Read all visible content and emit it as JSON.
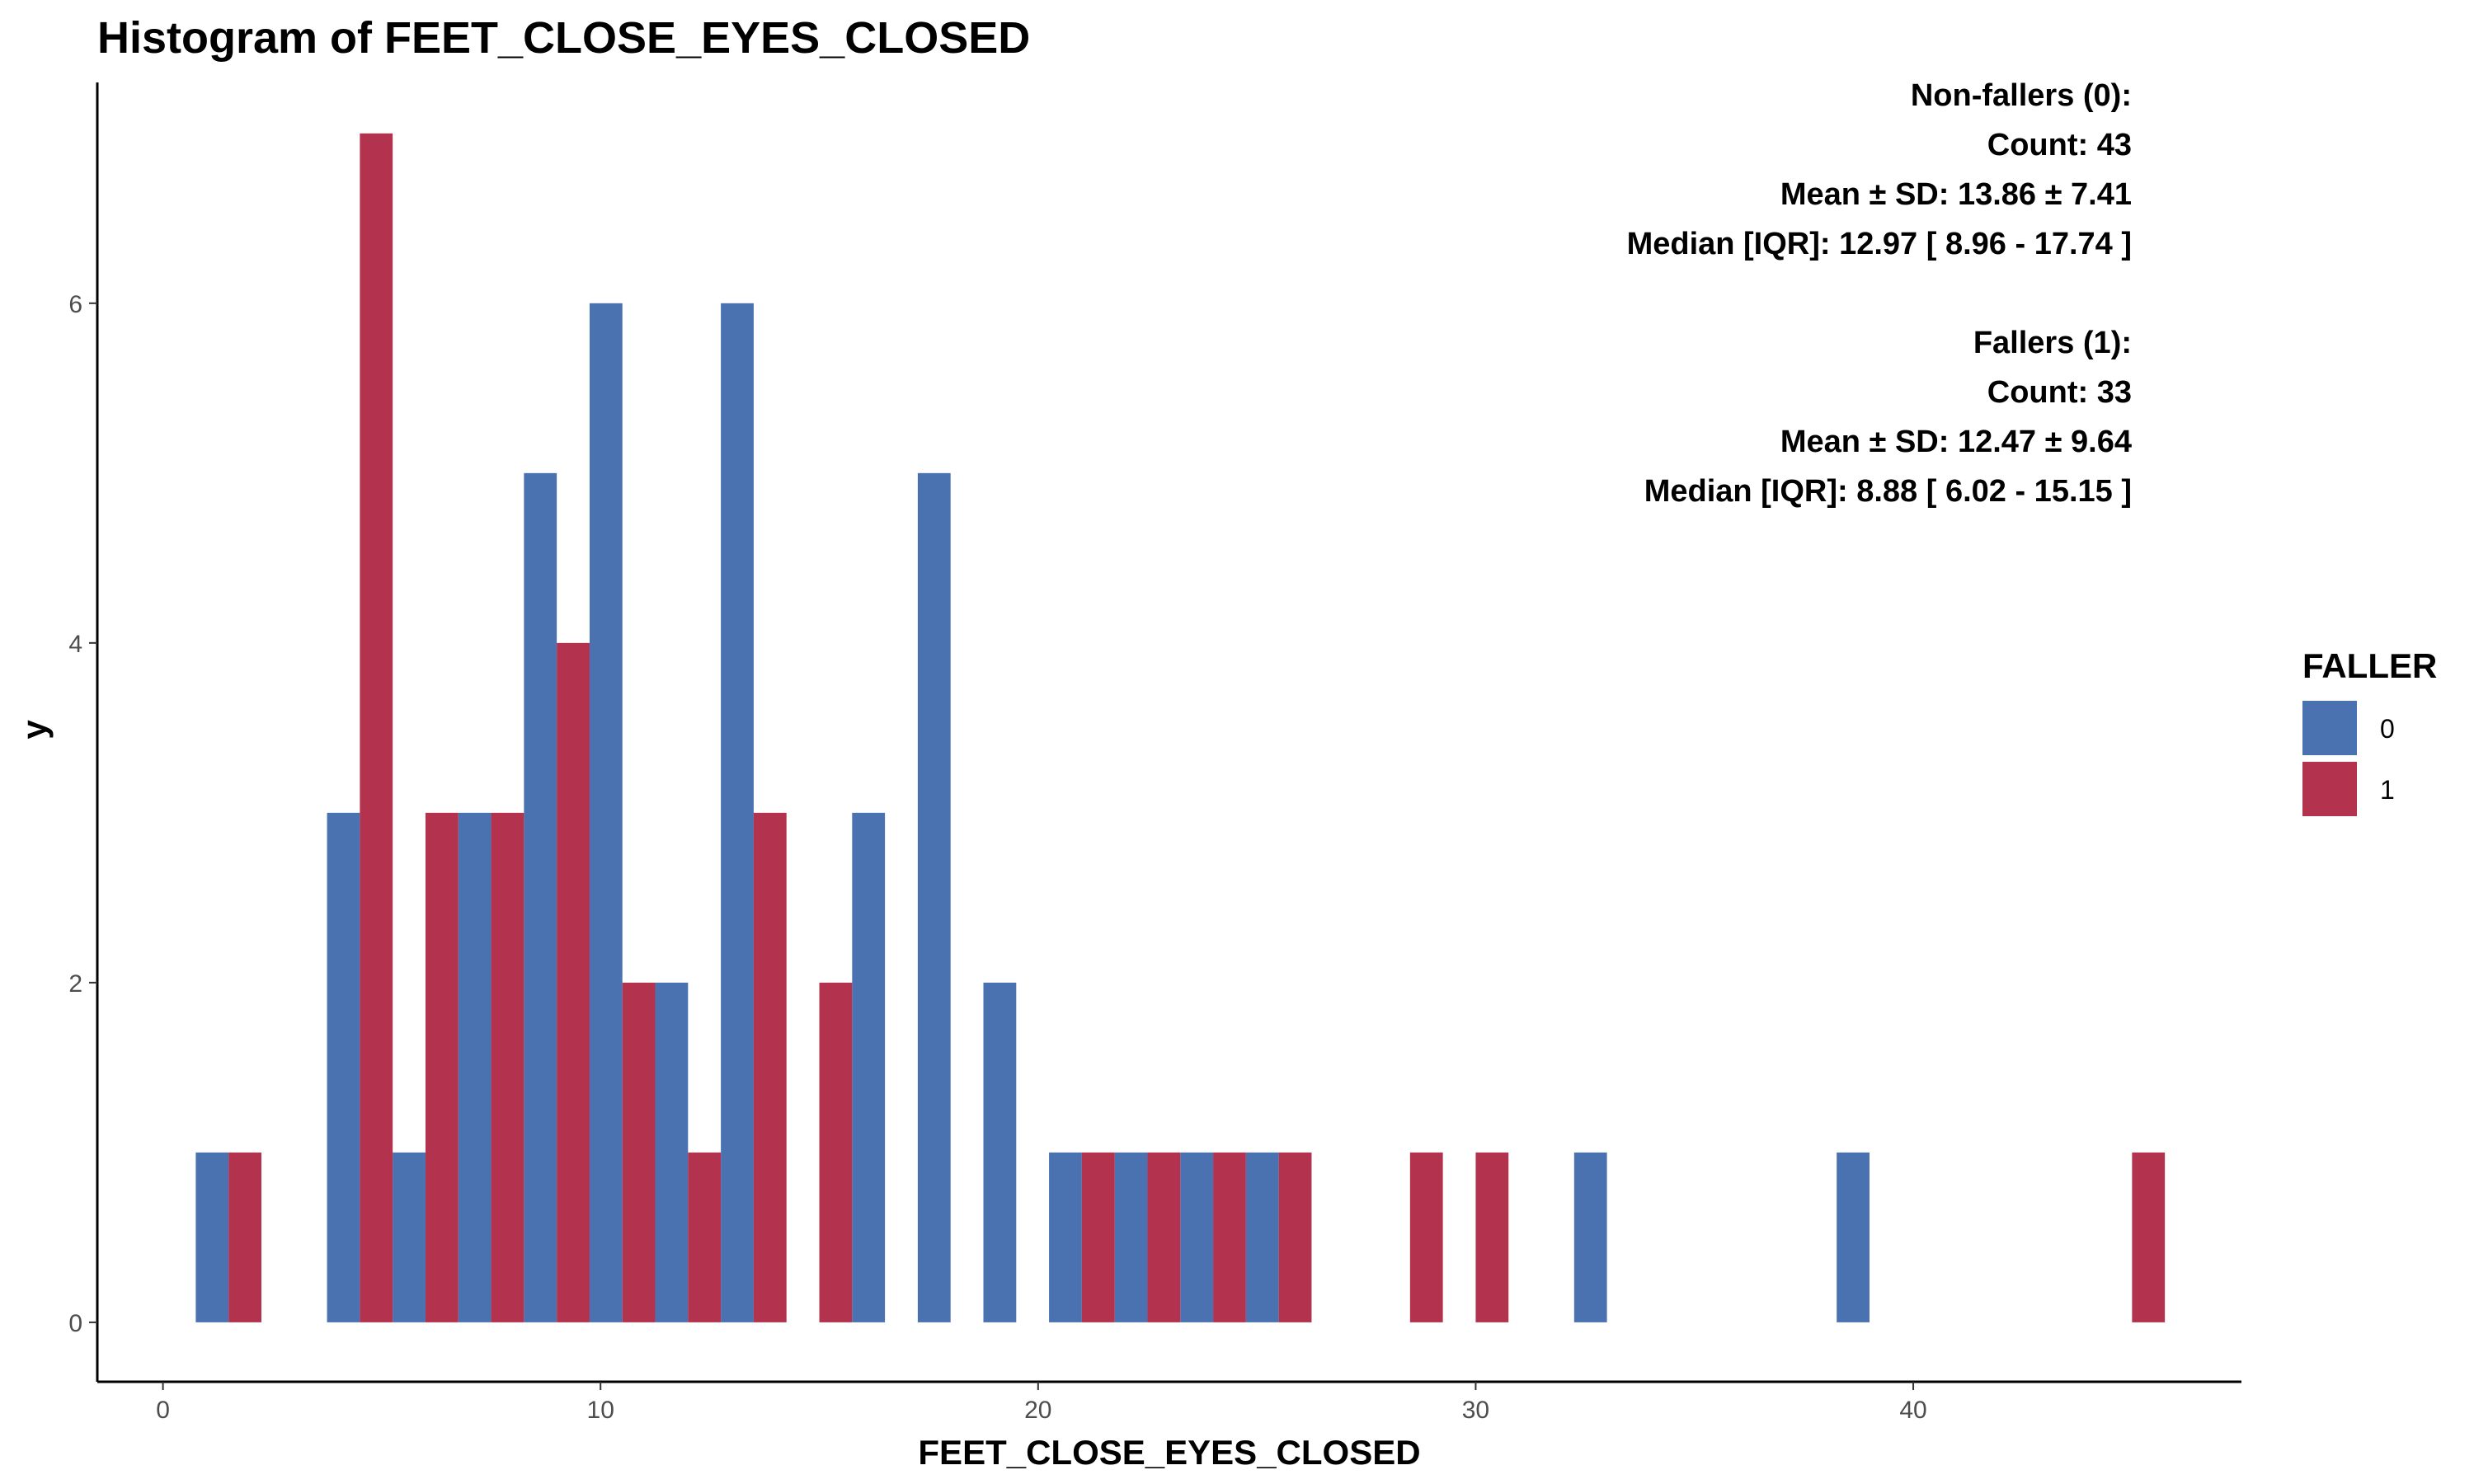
{
  "chart_data": {
    "type": "bar",
    "title": "Histogram of FEET_CLOSE_EYES_CLOSED",
    "xlabel": "FEET_CLOSE_EYES_CLOSED",
    "ylabel": "y",
    "xlim": [
      -1.5,
      47.5
    ],
    "ylim": [
      -0.35,
      7.3
    ],
    "x_ticks": [
      0,
      10,
      20,
      30,
      40
    ],
    "y_ticks": [
      0,
      2,
      4,
      6
    ],
    "bin_width": 1.5,
    "grid": false,
    "legend": {
      "title": "FALLER",
      "position": "right"
    },
    "colors": {
      "0": "#4a72b0",
      "1": "#b3324e"
    },
    "series": [
      {
        "name": "0",
        "bins": [
          {
            "x": 1.5,
            "count": 1
          },
          {
            "x": 4.5,
            "count": 3
          },
          {
            "x": 6.0,
            "count": 1
          },
          {
            "x": 7.5,
            "count": 3
          },
          {
            "x": 9.0,
            "count": 5
          },
          {
            "x": 10.5,
            "count": 6
          },
          {
            "x": 12.0,
            "count": 2
          },
          {
            "x": 13.5,
            "count": 6
          },
          {
            "x": 16.5,
            "count": 3
          },
          {
            "x": 18.0,
            "count": 5
          },
          {
            "x": 19.5,
            "count": 2
          },
          {
            "x": 21.0,
            "count": 1
          },
          {
            "x": 22.5,
            "count": 1
          },
          {
            "x": 24.0,
            "count": 1
          },
          {
            "x": 25.5,
            "count": 1
          },
          {
            "x": 33.0,
            "count": 1
          },
          {
            "x": 39.0,
            "count": 1
          }
        ]
      },
      {
        "name": "1",
        "bins": [
          {
            "x": 1.5,
            "count": 1
          },
          {
            "x": 4.5,
            "count": 7
          },
          {
            "x": 6.0,
            "count": 3
          },
          {
            "x": 7.5,
            "count": 3
          },
          {
            "x": 9.0,
            "count": 4
          },
          {
            "x": 10.5,
            "count": 2
          },
          {
            "x": 12.0,
            "count": 1
          },
          {
            "x": 13.5,
            "count": 3
          },
          {
            "x": 15.0,
            "count": 2
          },
          {
            "x": 21.0,
            "count": 1
          },
          {
            "x": 22.5,
            "count": 1
          },
          {
            "x": 24.0,
            "count": 1
          },
          {
            "x": 25.5,
            "count": 1
          },
          {
            "x": 28.5,
            "count": 1
          },
          {
            "x": 30.0,
            "count": 1
          },
          {
            "x": 45.0,
            "count": 1
          }
        ]
      }
    ],
    "annotations": [
      "Non-fallers (0):",
      "Count: 43",
      "Mean ± SD: 13.86 ± 7.41",
      "Median [IQR]: 12.97 [ 8.96 - 17.74 ]",
      "",
      "Fallers (1):",
      "Count: 33",
      "Mean ± SD: 12.47 ± 9.64",
      "Median [IQR]: 8.88 [ 6.02 - 15.15 ]"
    ]
  }
}
